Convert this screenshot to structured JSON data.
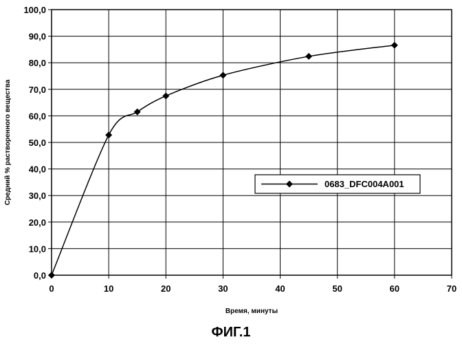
{
  "chart_data": {
    "type": "line",
    "xlabel": "Время, минуты",
    "ylabel": "Средний % растворенного вещества",
    "xlim": [
      0,
      70
    ],
    "ylim": [
      0,
      100
    ],
    "x_ticks": [
      "0",
      "10",
      "20",
      "30",
      "40",
      "50",
      "60",
      "70"
    ],
    "y_ticks": [
      "0,0",
      "10,0",
      "20,0",
      "30,0",
      "40,0",
      "50,0",
      "60,0",
      "70,0",
      "80,0",
      "90,0",
      "100,0"
    ],
    "grid": "both",
    "legend_position": "right-middle",
    "series": [
      {
        "name": "0683_DFC004A001",
        "color": "#000000",
        "marker": "diamond",
        "x": [
          0,
          10,
          15,
          20,
          30,
          45,
          60
        ],
        "y": [
          0.0,
          52.8,
          61.5,
          67.5,
          75.3,
          82.4,
          86.6
        ]
      }
    ]
  },
  "caption": "ФИГ.1"
}
